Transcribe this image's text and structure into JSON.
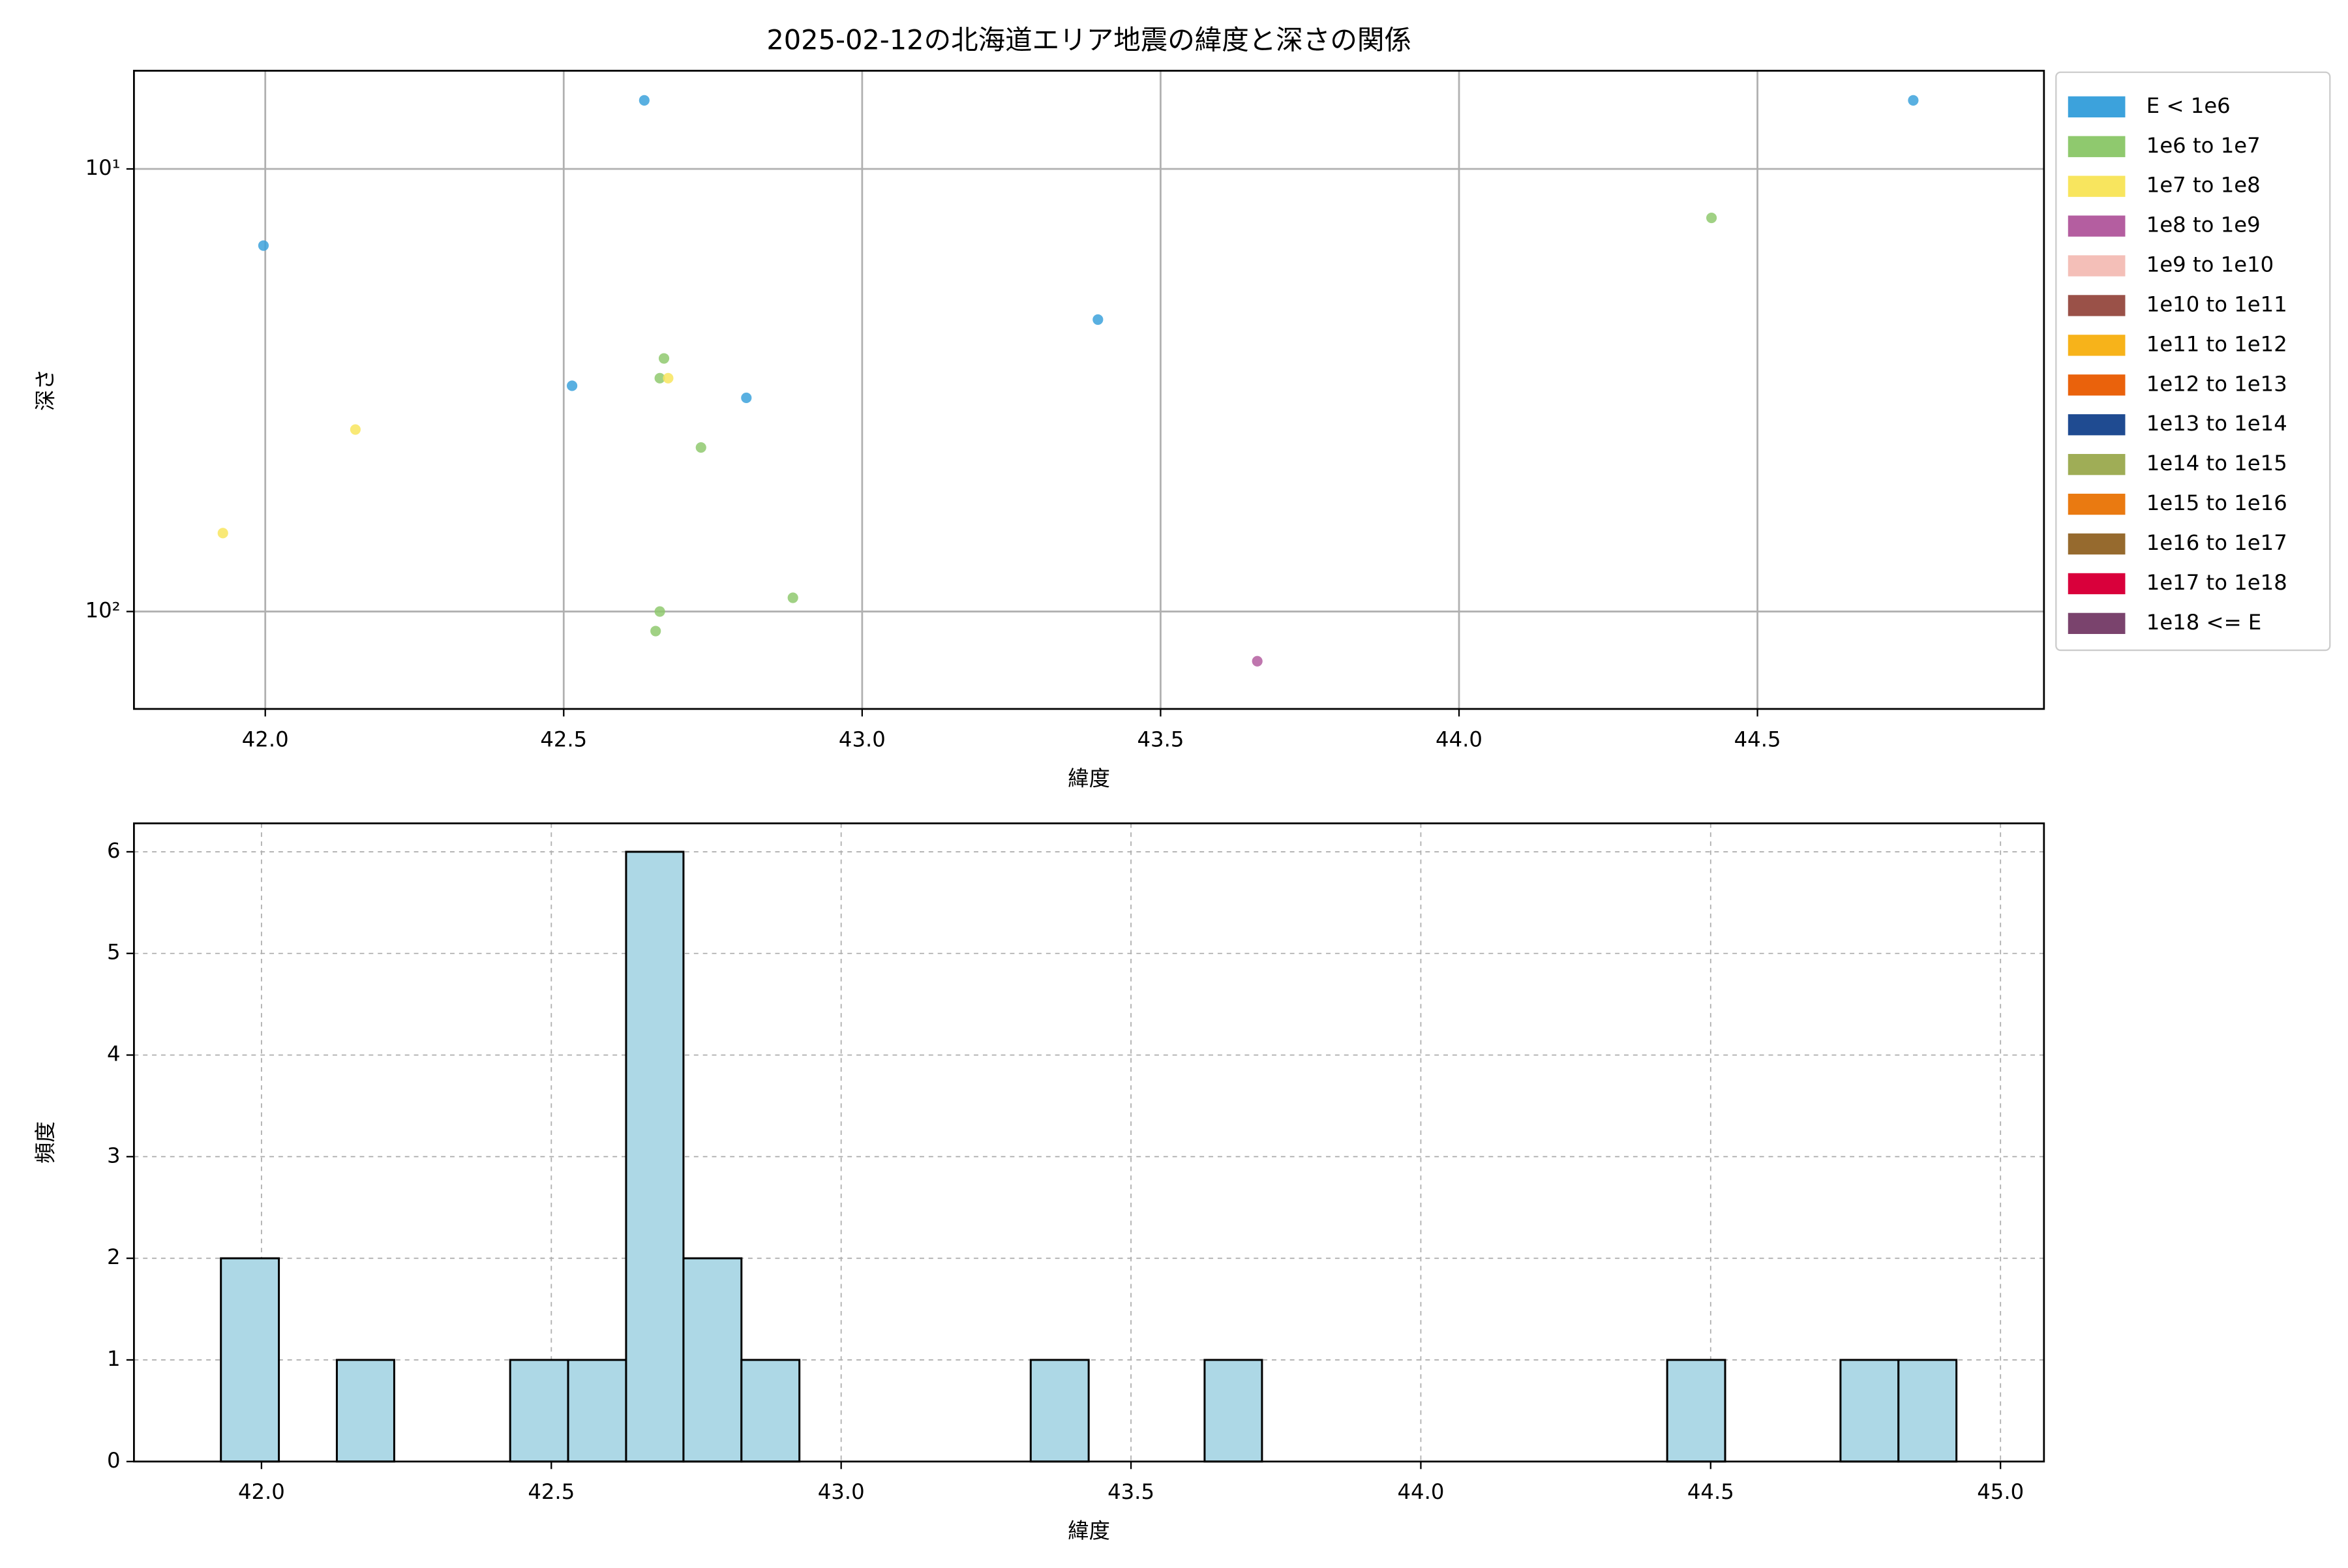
{
  "chart_data": [
    {
      "type": "scatter",
      "title": "2025-02-12の北海道エリア地震の緯度と深さの関係",
      "xlabel": "緯度",
      "ylabel": "深さ",
      "yscale": "log",
      "yinverted": true,
      "grid": true,
      "grid_style": "solid",
      "legend": "outside upper right",
      "xlim": [
        41.78,
        44.98
      ],
      "xticks": [
        {
          "value": 42,
          "label": "42.0"
        },
        {
          "value": 42.5,
          "label": "42.5"
        },
        {
          "value": 43,
          "label": "43.0"
        },
        {
          "value": 43.5,
          "label": "43.5"
        },
        {
          "value": 44,
          "label": "44.0"
        },
        {
          "value": 44.5,
          "label": "44.5"
        }
      ],
      "ylim": [
        6.0,
        166
      ],
      "yticks": [
        {
          "value": 10,
          "label": "10¹"
        },
        {
          "value": 100,
          "label": "10²"
        }
      ],
      "series": [
        {
          "name": "E < 1e6",
          "color": "#3ca2dc",
          "x": [
            42.635,
            44.761,
            41.997,
            43.395,
            42.514,
            42.806
          ],
          "values": [
            7.0,
            7.0,
            14.9,
            21.9,
            30.9,
            32.9
          ]
        },
        {
          "name": "1e6 to 1e7",
          "color": "#8fc96e",
          "x": [
            44.423,
            42.668,
            42.661,
            42.73,
            42.884,
            42.661,
            42.654
          ],
          "values": [
            12.9,
            26.8,
            29.7,
            42.6,
            93.1,
            100,
            110.7
          ]
        },
        {
          "name": "1e7 to 1e8",
          "color": "#f8e55e",
          "x": [
            42.675,
            42.151,
            41.929
          ],
          "values": [
            29.7,
            38.8,
            66.5
          ]
        },
        {
          "name": "1e8 to 1e9",
          "color": "#b45ea0",
          "x": [
            43.662
          ],
          "values": [
            129.5
          ]
        },
        {
          "name": "1e9 to 1e10",
          "color": "#f4bfb8",
          "x": [],
          "values": []
        },
        {
          "name": "1e10 to 1e11",
          "color": "#9a5148",
          "x": [],
          "values": []
        },
        {
          "name": "1e11 to 1e12",
          "color": "#f7b31a",
          "x": [],
          "values": []
        },
        {
          "name": "1e12 to 1e13",
          "color": "#ea620c",
          "x": [],
          "values": []
        },
        {
          "name": "1e13 to 1e14",
          "color": "#1f4b91",
          "x": [],
          "values": []
        },
        {
          "name": "1e14 to 1e15",
          "color": "#9fad56",
          "x": [],
          "values": []
        },
        {
          "name": "1e15 to 1e16",
          "color": "#ea7a11",
          "x": [],
          "values": []
        },
        {
          "name": "1e16 to 1e17",
          "color": "#966a2e",
          "x": [],
          "values": []
        },
        {
          "name": "1e17 to 1e18",
          "color": "#d9003b",
          "x": [],
          "values": []
        },
        {
          "name": "1e18 <= E",
          "color": "#7a436d",
          "x": [],
          "values": []
        }
      ]
    },
    {
      "type": "histogram",
      "xlabel": "緯度",
      "ylabel": "頻度",
      "color": "#add8e6",
      "edgecolor": "#000000",
      "grid": true,
      "grid_style": "dashed",
      "bins": [
        41.93,
        42.03,
        42.13,
        42.229,
        42.329,
        42.429,
        42.529,
        42.629,
        42.728,
        42.828,
        42.928,
        43.028,
        43.128,
        43.227,
        43.327,
        43.427,
        43.527,
        43.627,
        43.726,
        43.826,
        43.926,
        44.026,
        44.126,
        44.225,
        44.325,
        44.425,
        44.525,
        44.625,
        44.724,
        44.824,
        44.924
      ],
      "values": [
        2,
        0,
        1,
        0,
        0,
        1,
        1,
        6,
        2,
        1,
        0,
        0,
        0,
        0,
        1,
        0,
        0,
        1,
        0,
        0,
        0,
        0,
        0,
        0,
        0,
        1,
        0,
        0,
        1,
        1
      ],
      "xlim": [
        41.78,
        45.075
      ],
      "xticks": [
        {
          "value": 42,
          "label": "42.0"
        },
        {
          "value": 42.5,
          "label": "42.5"
        },
        {
          "value": 43,
          "label": "43.0"
        },
        {
          "value": 43.5,
          "label": "43.5"
        },
        {
          "value": 44,
          "label": "44.0"
        },
        {
          "value": 44.5,
          "label": "44.5"
        },
        {
          "value": 45,
          "label": "45.0"
        }
      ],
      "ylim": [
        0,
        6.28
      ],
      "yticks": [
        0,
        1,
        2,
        3,
        4,
        5,
        6
      ]
    }
  ]
}
